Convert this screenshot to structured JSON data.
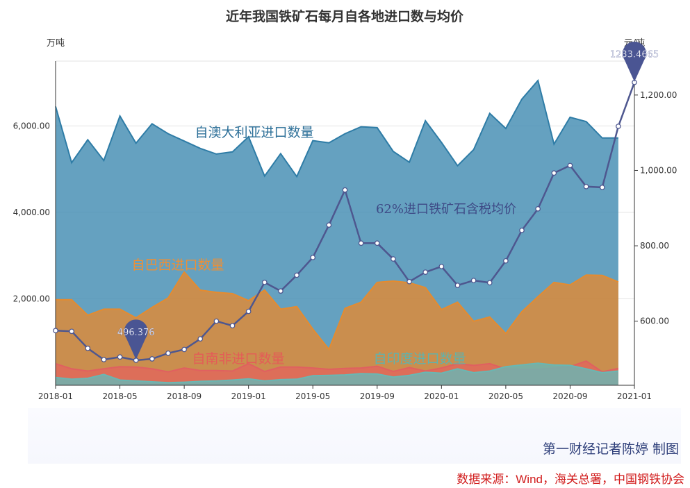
{
  "chart_data": {
    "type": "area",
    "title": "近年我国铁矿石每月自各地进口数与均价",
    "y_left_label": "万吨",
    "y_right_label": "元/吨",
    "y_left_range": [
      0,
      7500
    ],
    "y_left_ticks": [
      "2,000.00",
      "4,000.00",
      "6,000.00"
    ],
    "y_right_range": [
      430,
      1290
    ],
    "y_right_ticks": [
      "600.00",
      "800.00",
      "1,000.00",
      "1,200.00"
    ],
    "x_range": [
      "2018-01",
      "2021-01"
    ],
    "x_ticks": [
      "2018-01",
      "2018-05",
      "2018-09",
      "2019-01",
      "2019-05",
      "2019-09",
      "2020-01",
      "2020-05",
      "2020-09",
      "2021-01"
    ],
    "months": [
      "2018-01",
      "2018-02",
      "2018-03",
      "2018-04",
      "2018-05",
      "2018-06",
      "2018-07",
      "2018-08",
      "2018-09",
      "2018-10",
      "2018-11",
      "2018-12",
      "2019-01",
      "2019-02",
      "2019-03",
      "2019-04",
      "2019-05",
      "2019-06",
      "2019-07",
      "2019-08",
      "2019-09",
      "2019-10",
      "2019-11",
      "2019-12",
      "2020-01",
      "2020-02",
      "2020-03",
      "2020-04",
      "2020-05",
      "2020-06",
      "2020-07",
      "2020-08",
      "2020-09",
      "2020-10",
      "2020-11",
      "2020-12"
    ],
    "series": [
      {
        "name": "自澳大利亚进口数量",
        "color": "#2e7ca6",
        "values": [
          6450,
          5150,
          5680,
          5200,
          6230,
          5600,
          6050,
          5820,
          5650,
          5480,
          5350,
          5400,
          5750,
          4840,
          5360,
          4830,
          5660,
          5610,
          5820,
          5980,
          5960,
          5410,
          5160,
          6120,
          5620,
          5080,
          5450,
          6290,
          5940,
          6620,
          7050,
          5580,
          6200,
          6100,
          5720,
          5720
        ]
      },
      {
        "name": "自巴西进口数量",
        "color": "#e58b2f",
        "values": [
          1980,
          1980,
          1620,
          1760,
          1760,
          1560,
          1800,
          2020,
          2620,
          2200,
          2150,
          2120,
          1960,
          2200,
          1760,
          1820,
          1300,
          830,
          1780,
          1920,
          2380,
          2410,
          2370,
          2260,
          1750,
          1920,
          1480,
          1580,
          1200,
          1700,
          2050,
          2380,
          2320,
          2550,
          2540,
          2390
        ]
      },
      {
        "name": "自南非进口数量",
        "color": "#e06060",
        "values": [
          500,
          380,
          330,
          380,
          430,
          420,
          380,
          310,
          400,
          340,
          340,
          330,
          500,
          320,
          420,
          420,
          400,
          370,
          390,
          400,
          440,
          320,
          410,
          330,
          400,
          500,
          460,
          500,
          380,
          370,
          370,
          400,
          430,
          560,
          310,
          390
        ]
      },
      {
        "name": "自印度进口数量",
        "color": "#69b7b3",
        "values": [
          180,
          140,
          160,
          250,
          120,
          100,
          80,
          60,
          70,
          90,
          100,
          120,
          150,
          100,
          130,
          140,
          220,
          230,
          240,
          270,
          260,
          190,
          230,
          300,
          280,
          380,
          290,
          330,
          430,
          470,
          510,
          470,
          460,
          380,
          290,
          330
        ]
      }
    ],
    "price_series": {
      "name": "62%进口铁矿石含税均价",
      "color": "#4e578f",
      "x": [
        "2018-01",
        "2018-02",
        "2018-03",
        "2018-04",
        "2018-05",
        "2018-06",
        "2018-07",
        "2018-08",
        "2018-09",
        "2018-10",
        "2018-11",
        "2018-12",
        "2019-01",
        "2019-02",
        "2019-03",
        "2019-04",
        "2019-05",
        "2019-06",
        "2019-07",
        "2019-08",
        "2019-09",
        "2019-10",
        "2019-11",
        "2019-12",
        "2020-01",
        "2020-02",
        "2020-03",
        "2020-04",
        "2020-05",
        "2020-06",
        "2020-07",
        "2020-08",
        "2020-09",
        "2020-10",
        "2020-11",
        "2020-12",
        "2021-01"
      ],
      "values": [
        575,
        573,
        528,
        498,
        505,
        496.376,
        500,
        515,
        525,
        553,
        600,
        588,
        626,
        703,
        680,
        722,
        769,
        855,
        948,
        807,
        807,
        765,
        705,
        730,
        745,
        695,
        708,
        702,
        760,
        841,
        898,
        993,
        1013,
        957,
        955,
        1117,
        1233.4665
      ]
    },
    "annotations": {
      "min_label": "496.376",
      "max_label": "1233.4665"
    }
  },
  "credit": {
    "author": "第一财经记者陈婷 制图",
    "source": "数据来源：Wind，海关总署，中国钢铁协会"
  }
}
